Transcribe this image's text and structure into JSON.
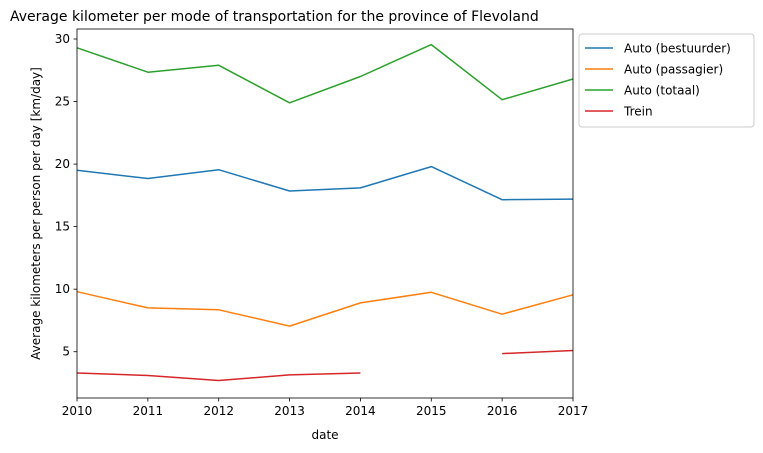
{
  "chart_data": {
    "type": "line",
    "title": "Average kilometer per mode of transportation for the province of Flevoland",
    "xlabel": "date",
    "ylabel": "Average kilometers per person per day [km/day]",
    "x": [
      2010,
      2011,
      2012,
      2013,
      2014,
      2015,
      2016,
      2017
    ],
    "xlim": [
      2010,
      2017
    ],
    "ylim": [
      1.3,
      30.8
    ],
    "yticks": [
      5,
      10,
      15,
      20,
      25,
      30
    ],
    "grid": false,
    "legend_position": "outside-top-right",
    "series": [
      {
        "name": "Auto (bestuurder)",
        "color": "#1f77b4",
        "values": [
          19.5,
          18.85,
          19.55,
          17.85,
          18.1,
          19.8,
          17.15,
          17.2
        ]
      },
      {
        "name": "Auto (passagier)",
        "color": "#ff7f0e",
        "values": [
          9.8,
          8.5,
          8.35,
          7.05,
          8.9,
          9.75,
          8.0,
          9.55
        ]
      },
      {
        "name": "Auto (totaal)",
        "color": "#2ca02c",
        "values": [
          29.3,
          27.35,
          27.9,
          24.9,
          27.0,
          29.55,
          25.15,
          26.8
        ]
      },
      {
        "name": "Trein",
        "color": "#d62728",
        "values": [
          3.3,
          3.1,
          2.7,
          3.15,
          3.3,
          null,
          4.85,
          5.1
        ]
      }
    ]
  }
}
